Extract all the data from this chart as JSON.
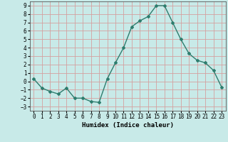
{
  "x": [
    0,
    1,
    2,
    3,
    4,
    5,
    6,
    7,
    8,
    9,
    10,
    11,
    12,
    13,
    14,
    15,
    16,
    17,
    18,
    19,
    20,
    21,
    22,
    23
  ],
  "y": [
    0.3,
    -0.8,
    -1.2,
    -1.5,
    -0.8,
    -2.0,
    -2.0,
    -2.4,
    -2.5,
    0.3,
    2.2,
    4.0,
    6.5,
    7.2,
    7.7,
    9.0,
    9.0,
    7.0,
    5.0,
    3.3,
    2.5,
    2.2,
    1.3,
    -0.7
  ],
  "line_color": "#2e7d6e",
  "marker": "D",
  "marker_size": 2.0,
  "bg_color": "#c8eae8",
  "grid_color": "#d4a0a0",
  "ylim": [
    -3.5,
    9.5
  ],
  "xlim": [
    -0.5,
    23.5
  ],
  "yticks": [
    -3,
    -2,
    -1,
    0,
    1,
    2,
    3,
    4,
    5,
    6,
    7,
    8,
    9
  ],
  "xticks": [
    0,
    1,
    2,
    3,
    4,
    5,
    6,
    7,
    8,
    9,
    10,
    11,
    12,
    13,
    14,
    15,
    16,
    17,
    18,
    19,
    20,
    21,
    22,
    23
  ],
  "xlabel": "Humidex (Indice chaleur)",
  "xlabel_fontsize": 6.5,
  "tick_fontsize": 5.5,
  "linewidth": 1.0
}
